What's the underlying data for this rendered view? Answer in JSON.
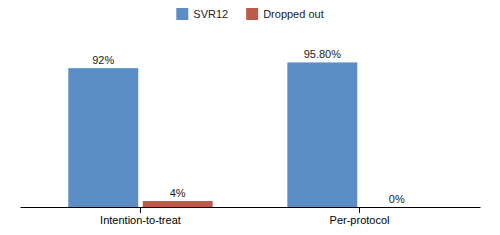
{
  "chart_data": {
    "type": "bar",
    "categories": [
      "Intention-to-treat",
      "Per-protocol"
    ],
    "series": [
      {
        "name": "SVR12",
        "color": "#5B8EC4",
        "values": [
          92,
          95.8
        ],
        "value_labels": [
          "92%",
          "95.80%"
        ]
      },
      {
        "name": "Dropped out",
        "color": "#BE5A4C",
        "values": [
          4,
          0
        ],
        "value_labels": [
          "4%",
          "0%"
        ]
      }
    ],
    "ylim": [
      0,
      108
    ],
    "grid": false,
    "legend": "top",
    "data_labels": true,
    "tick_labels": "x"
  }
}
